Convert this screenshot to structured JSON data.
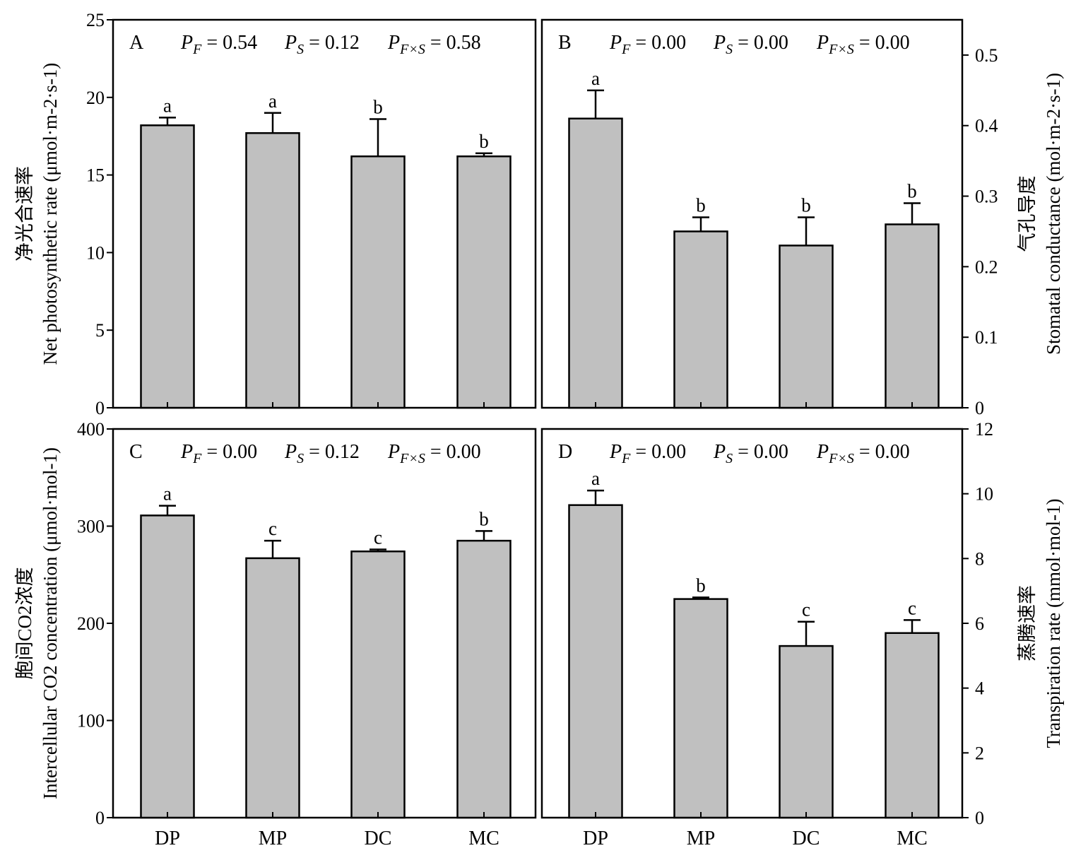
{
  "chart_data": [
    {
      "panel": "A",
      "type": "bar",
      "stats": {
        "PF": "0.54",
        "PS": "0.12",
        "PFxS": "0.58"
      },
      "categories": [
        "DP",
        "MP",
        "DC",
        "MC"
      ],
      "values": [
        18.2,
        17.7,
        16.2,
        16.2
      ],
      "errors": [
        0.5,
        1.3,
        2.4,
        0.2
      ],
      "letters": [
        "a",
        "a",
        "b",
        "b"
      ],
      "ylabel_cn": "净光合速率",
      "ylabel_en": "Net photosynthetic rate (μmol·m-2·s-1)",
      "ylim": [
        0,
        25
      ],
      "yticks": [
        0,
        5,
        10,
        15,
        20,
        25
      ],
      "ytick_labels": [
        "0",
        "5",
        "10",
        "15",
        "20",
        "25"
      ],
      "yaxis_side": "left"
    },
    {
      "panel": "B",
      "type": "bar",
      "stats": {
        "PF": "0.00",
        "PS": "0.00",
        "PFxS": "0.00"
      },
      "categories": [
        "DP",
        "MP",
        "DC",
        "MC"
      ],
      "values": [
        0.41,
        0.25,
        0.23,
        0.26
      ],
      "errors": [
        0.04,
        0.02,
        0.04,
        0.03
      ],
      "letters": [
        "a",
        "b",
        "b",
        "b"
      ],
      "ylabel_cn": "气孔导度",
      "ylabel_en": "Stomatal conductance (mol·m-2·s-1)",
      "ylim": [
        0,
        0.55
      ],
      "yticks": [
        0,
        0.1,
        0.2,
        0.3,
        0.4,
        0.5
      ],
      "ytick_labels": [
        "0",
        "0.1",
        "0.2",
        "0.3",
        "0.4",
        "0.5"
      ],
      "yaxis_side": "right"
    },
    {
      "panel": "C",
      "type": "bar",
      "stats": {
        "PF": "0.00",
        "PS": "0.12",
        "PFxS": "0.00"
      },
      "categories": [
        "DP",
        "MP",
        "DC",
        "MC"
      ],
      "values": [
        311,
        267,
        274,
        285
      ],
      "errors": [
        10,
        18,
        2,
        10
      ],
      "letters": [
        "a",
        "c",
        "c",
        "b"
      ],
      "ylabel_cn": "胞间CO2浓度",
      "ylabel_en": "Intercellular CO2 concentration (μmol·mol-1)",
      "ylim": [
        0,
        400
      ],
      "yticks": [
        0,
        100,
        200,
        300,
        400
      ],
      "ytick_labels": [
        "0",
        "100",
        "200",
        "300",
        "400"
      ],
      "yaxis_side": "left"
    },
    {
      "panel": "D",
      "type": "bar",
      "stats": {
        "PF": "0.00",
        "PS": "0.00",
        "PFxS": "0.00"
      },
      "categories": [
        "DP",
        "MP",
        "DC",
        "MC"
      ],
      "values": [
        9.65,
        6.75,
        5.3,
        5.7
      ],
      "errors": [
        0.45,
        0.05,
        0.75,
        0.4
      ],
      "letters": [
        "a",
        "b",
        "c",
        "c"
      ],
      "ylabel_cn": "蒸腾速率",
      "ylabel_en": "Transpiration rate (mmol·mol-1)",
      "ylim": [
        0,
        12
      ],
      "yticks": [
        0,
        2,
        4,
        6,
        8,
        10,
        12
      ],
      "ytick_labels": [
        "0",
        "2",
        "4",
        "6",
        "8",
        "10",
        "12"
      ],
      "yaxis_side": "right"
    }
  ],
  "colors": {
    "bar_fill": "#c0c0c0",
    "stroke": "#000000"
  }
}
